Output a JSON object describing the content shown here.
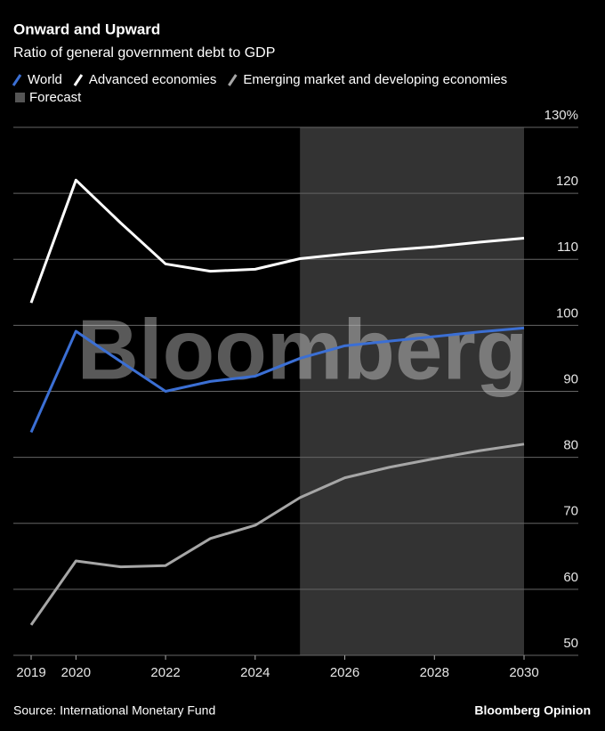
{
  "chart_data": {
    "type": "line",
    "title": "Onward and Upward",
    "subtitle": "Ratio of general government debt to GDP",
    "x": [
      2019,
      2020,
      2021,
      2022,
      2023,
      2024,
      2025,
      2026,
      2027,
      2028,
      2029,
      2030
    ],
    "series": [
      {
        "name": "World",
        "color": "#3b6fd4",
        "values": [
          83.8,
          99.1,
          94.5,
          90.0,
          91.5,
          92.3,
          95.0,
          96.9,
          97.6,
          98.3,
          99.0,
          99.6
        ]
      },
      {
        "name": "Advanced economies",
        "color": "#ffffff",
        "values": [
          103.4,
          122.0,
          115.5,
          109.3,
          108.2,
          108.5,
          110.1,
          110.8,
          111.4,
          111.9,
          112.6,
          113.2
        ]
      },
      {
        "name": "Emerging market and developing economies",
        "color": "#a6a6a6",
        "values": [
          54.6,
          64.3,
          63.4,
          63.6,
          67.7,
          69.7,
          73.9,
          76.9,
          78.5,
          79.8,
          81.0,
          82.0
        ]
      }
    ],
    "shaded_region": {
      "label": "Forecast",
      "color": "#333333",
      "x": [
        2025,
        2030
      ]
    },
    "xlim": [
      2019,
      2030
    ],
    "xticks": [
      2019,
      2020,
      2022,
      2024,
      2026,
      2028,
      2030
    ],
    "ylim": [
      50,
      130
    ],
    "yticks": [
      50,
      60,
      70,
      80,
      90,
      100,
      110,
      120,
      {
        "value": 130,
        "label": "130%"
      }
    ],
    "grid": true,
    "watermark": "Bloomberg",
    "source": "Source: International Monetary Fund",
    "brand": "Bloomberg Opinion"
  }
}
